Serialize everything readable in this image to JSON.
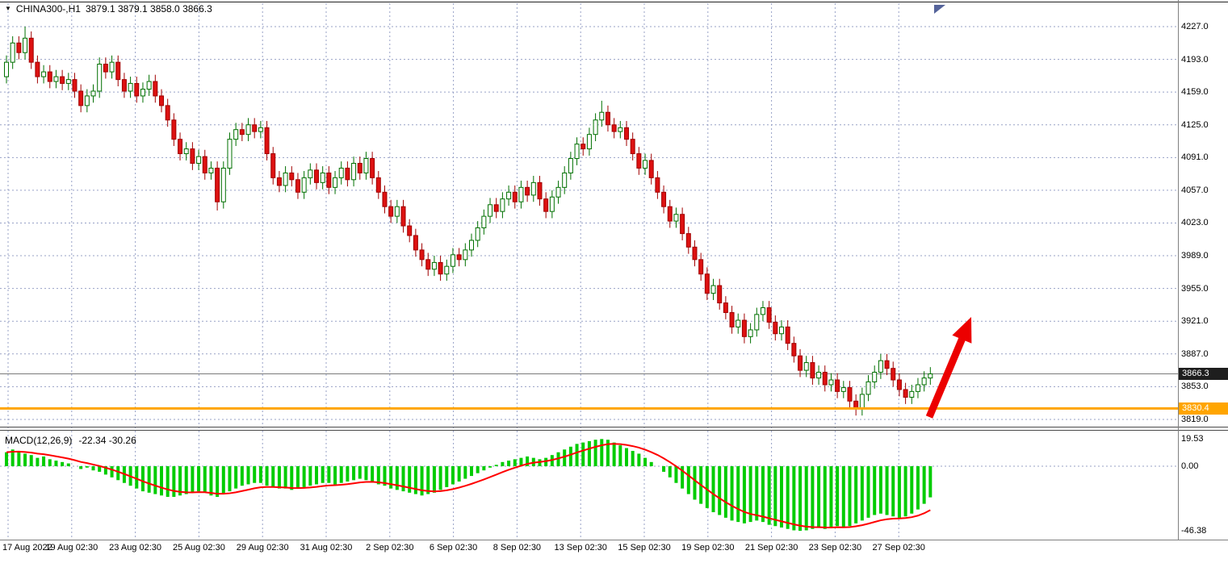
{
  "header": {
    "marker": "▼",
    "symbol_period": "CHINA300-,H1",
    "ohlc": "3879.1 3879.1 3858.0 3866.3"
  },
  "macd_label": {
    "name": "MACD(12,26,9)",
    "values": "-22.34 -30.26"
  },
  "price_axis": {
    "labels": [
      "4227.0",
      "4193.0",
      "4159.0",
      "4125.0",
      "4091.0",
      "4057.0",
      "4023.0",
      "3989.0",
      "3955.0",
      "3921.0",
      "3887.0",
      "3853.0",
      "3819.0"
    ]
  },
  "macd_axis": {
    "labels": [
      {
        "text": "19.53",
        "value": 19.53
      },
      {
        "text": "0.00",
        "value": 0
      },
      {
        "text": "-46.38",
        "value": -46.38
      }
    ]
  },
  "time_axis": {
    "labels": [
      "17 Aug 2022",
      "19 Aug 02:30",
      "23 Aug 02:30",
      "25 Aug 02:30",
      "29 Aug 02:30",
      "31 Aug 02:30",
      "2 Sep 02:30",
      "6 Sep 02:30",
      "8 Sep 02:30",
      "13 Sep 02:30",
      "15 Sep 02:30",
      "19 Sep 02:30",
      "21 Sep 02:30",
      "23 Sep 02:30",
      "27 Sep 02:30"
    ]
  },
  "levels": {
    "current_price": {
      "text": "3866.3",
      "value": 3866.3
    },
    "orange_line": {
      "text": "3830.4",
      "value": 3830.4
    }
  },
  "colors": {
    "grid": "#97A1C6",
    "bull_fill": "#FFFFFF",
    "bull_border": "#007000",
    "bear_fill": "#DD1111",
    "bear_border": "#A00000",
    "macd_histogram": "#00CC00",
    "macd_signal": "#FF0000",
    "orange": "#FFA500",
    "current_line": "#7A7A7A",
    "current_badge_bg": "#1E1E1E",
    "separator": "#4A4A4A",
    "axis_separator": "#808080",
    "arrow": "#EC0000",
    "shift_marker": "#54639A",
    "top_border": "#222222"
  },
  "chart_data": {
    "type": "candlestick",
    "symbol": "CHINA300-",
    "timeframe": "H1",
    "price_range": {
      "top": 4227.0,
      "bottom": 3819.0,
      "step": 34.0
    },
    "first_open": 4175,
    "wick": 7,
    "closes": [
      4190,
      4210,
      4200,
      4215,
      4190,
      4175,
      4180,
      4170,
      4175,
      4168,
      4172,
      4160,
      4145,
      4155,
      4160,
      4188,
      4180,
      4190,
      4172,
      4160,
      4168,
      4155,
      4162,
      4170,
      4155,
      4145,
      4130,
      4110,
      4095,
      4100,
      4085,
      4092,
      4075,
      4080,
      4045,
      4080,
      4110,
      4120,
      4115,
      4125,
      4118,
      4122,
      4095,
      4070,
      4062,
      4075,
      4068,
      4055,
      4070,
      4078,
      4065,
      4075,
      4060,
      4070,
      4080,
      4068,
      4085,
      4075,
      4090,
      4070,
      4055,
      4040,
      4030,
      4040,
      4020,
      4010,
      3995,
      3985,
      3975,
      3982,
      3970,
      3978,
      3990,
      3985,
      3995,
      4005,
      4018,
      4030,
      4042,
      4035,
      4048,
      4055,
      4045,
      4060,
      4052,
      4065,
      4048,
      4035,
      4050,
      4060,
      4075,
      4090,
      4105,
      4100,
      4115,
      4130,
      4138,
      4125,
      4118,
      4122,
      4110,
      4095,
      4080,
      4088,
      4070,
      4055,
      4040,
      4025,
      4032,
      4012,
      3998,
      3985,
      3970,
      3950,
      3958,
      3940,
      3930,
      3915,
      3922,
      3905,
      3912,
      3928,
      3935,
      3920,
      3908,
      3915,
      3898,
      3885,
      3870,
      3878,
      3862,
      3868,
      3855,
      3860,
      3848,
      3852,
      3838,
      3830,
      3845,
      3858,
      3868,
      3880,
      3872,
      3860,
      3850,
      3842,
      3848,
      3855,
      3862,
      3866.3
    ],
    "overrides": {
      "3": {
        "high": 4227
      },
      "34": {
        "low": 4036
      },
      "96": {
        "high": 4150
      },
      "137": {
        "low": 3823
      }
    },
    "macd": {
      "params": "12,26,9",
      "current_macd": -22.34,
      "current_signal": -30.26,
      "signal_ema_period": 9,
      "range": {
        "top": 19.53,
        "zero": 0,
        "bottom": -46.38
      },
      "histogram": [
        10,
        12,
        11,
        9,
        8,
        6,
        7,
        5,
        4,
        3,
        2,
        0,
        -2,
        -1,
        -3,
        -4,
        -6,
        -8,
        -10,
        -12,
        -14,
        -16,
        -18,
        -19,
        -20,
        -21,
        -22,
        -22,
        -21,
        -20,
        -19,
        -18,
        -19,
        -21,
        -22,
        -20,
        -18,
        -16,
        -14,
        -13,
        -12,
        -12,
        -14,
        -15,
        -16,
        -16,
        -17,
        -16,
        -15,
        -14,
        -13,
        -12,
        -12,
        -13,
        -12,
        -11,
        -10,
        -9,
        -10,
        -11,
        -13,
        -14,
        -16,
        -17,
        -18,
        -19,
        -20,
        -21,
        -20,
        -19,
        -17,
        -15,
        -13,
        -11,
        -9,
        -7,
        -5,
        -3,
        -1,
        1,
        3,
        4,
        5,
        6,
        7,
        6,
        5,
        6,
        8,
        10,
        12,
        14,
        16,
        17,
        18,
        19,
        19.5,
        19,
        17,
        15,
        13,
        11,
        9,
        6,
        3,
        0,
        -4,
        -8,
        -12,
        -16,
        -20,
        -24,
        -27,
        -30,
        -33,
        -35,
        -37,
        -39,
        -40,
        -41,
        -40,
        -39,
        -40,
        -42,
        -43,
        -44,
        -45,
        -46,
        -46.4,
        -46,
        -45,
        -44,
        -45,
        -44,
        -43,
        -44,
        -43,
        -41,
        -39,
        -37,
        -35,
        -34,
        -35,
        -36,
        -37,
        -36,
        -34,
        -31,
        -27,
        -22.34
      ]
    },
    "annotations": [
      {
        "type": "arrow",
        "color": "#EC0000",
        "from": [
          1151,
          517
        ],
        "to": [
          1203,
          393
        ]
      }
    ]
  }
}
